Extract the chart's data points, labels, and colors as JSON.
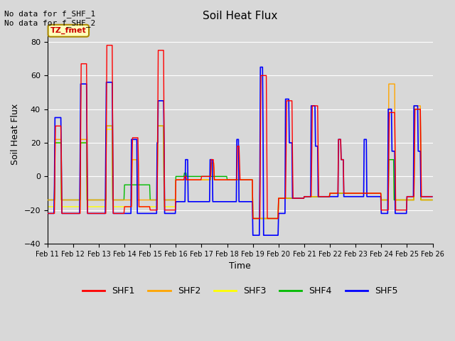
{
  "title": "Soil Heat Flux",
  "xlabel": "Time",
  "ylabel": "Soil Heat Flux",
  "ylim": [
    -40,
    90
  ],
  "yticks": [
    -40,
    -20,
    0,
    20,
    40,
    60,
    80
  ],
  "annotation_text": "No data for f_SHF_1\nNo data for f_SHF_2",
  "box_label": "TZ_fmet",
  "xtick_labels": [
    "Feb 11",
    "Feb 12",
    "Feb 13",
    "Feb 14",
    "Feb 15",
    "Feb 16",
    "Feb 17",
    "Feb 18",
    "Feb 19",
    "Feb 20",
    "Feb 21",
    "Feb 22",
    "Feb 23",
    "Feb 24",
    "Feb 25",
    "Feb 26"
  ],
  "series_colors": {
    "SHF1": "#ff0000",
    "SHF2": "#ffa500",
    "SHF3": "#ffff00",
    "SHF4": "#00bb00",
    "SHF5": "#0000ff"
  },
  "background_color": "#d8d8d8",
  "plot_bg_color": "#d8d8d8",
  "grid_color": "#ffffff",
  "figsize": [
    6.4,
    4.8
  ],
  "dpi": 100
}
